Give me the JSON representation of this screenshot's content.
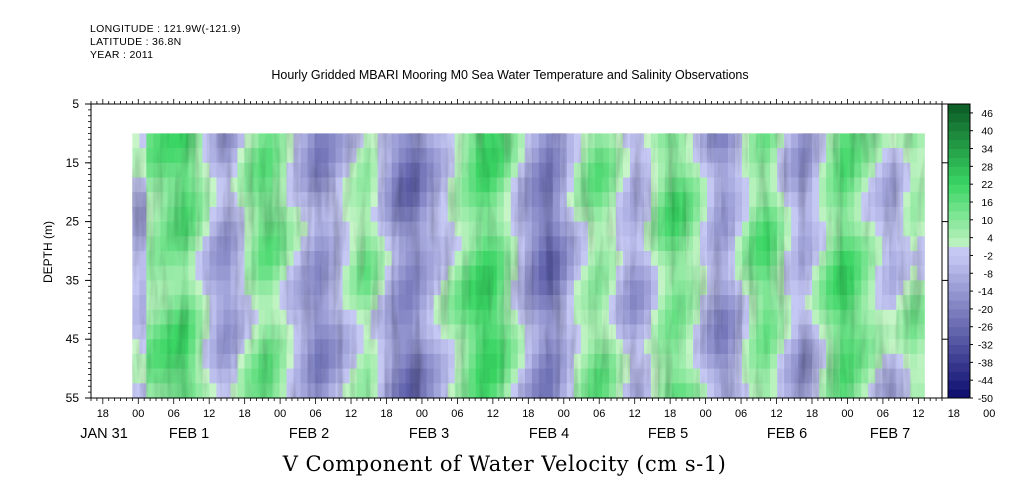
{
  "header": {
    "longitude": "LONGITUDE : 121.9W(-121.9)",
    "latitude": "LATITUDE : 36.8N",
    "year": "YEAR : 2011"
  },
  "chart_data": {
    "type": "heatmap",
    "title": "Hourly Gridded MBARI Mooring M0 Sea Water Temperature and Salinity Observations",
    "xlabel": "V Component of Water Velocity (cm s-1)",
    "ylabel": "DEPTH (m)",
    "ylim": [
      55,
      5
    ],
    "yticks": [
      "5",
      "15",
      "25",
      "35",
      "45",
      "55"
    ],
    "xlim_hours": [
      -8,
      136
    ],
    "data_range_hours": [
      -1,
      133
    ],
    "data_depth_range": [
      10,
      55
    ],
    "xticks_hours": [
      "18",
      "00",
      "06",
      "12",
      "18",
      "00",
      "06",
      "12",
      "18",
      "00",
      "06",
      "12",
      "18",
      "00",
      "06",
      "12",
      "18",
      "00",
      "06",
      "12",
      "18",
      "00",
      "06",
      "12",
      "18",
      "00",
      "06",
      "12",
      "18",
      "00",
      "06",
      "12"
    ],
    "date_labels": [
      "JAN 31",
      "FEB  1",
      "FEB  2",
      "FEB  3",
      "FEB  4",
      "FEB  5",
      "FEB  6",
      "FEB  7"
    ],
    "colorbar_labels": [
      "46",
      "40",
      "34",
      "28",
      "22",
      "16",
      "10",
      "4",
      "-2",
      "-8",
      "-14",
      "-20",
      "-26",
      "-32",
      "-38",
      "-44",
      "-50"
    ],
    "colorbar_levels": [
      -50,
      -47,
      -44,
      -41,
      -38,
      -35,
      -32,
      -29,
      -26,
      -23,
      -20,
      -17,
      -14,
      -11,
      -8,
      -5,
      -2,
      1,
      4,
      7,
      10,
      13,
      16,
      19,
      22,
      25,
      28,
      31,
      34,
      37,
      40,
      43,
      46,
      49
    ],
    "colors": {
      "negative_dark": "#0b0b6e",
      "negative_light": "#c5c8f3",
      "positive_light": "#c8f5c8",
      "positive_dark": "#0b5a24"
    },
    "field_columns": [
      -4,
      -6,
      8,
      10,
      12,
      14,
      15,
      16,
      12,
      6,
      0,
      -6,
      -10,
      -12,
      -8,
      -2,
      4,
      8,
      12,
      13,
      10,
      6,
      0,
      -4,
      -8,
      -12,
      -16,
      -14,
      -10,
      -6,
      -2,
      2,
      6,
      8,
      4,
      -2,
      -8,
      -14,
      -18,
      -20,
      -18,
      -14,
      -10,
      -6,
      -2,
      2,
      6,
      10,
      14,
      18,
      20,
      18,
      14,
      8,
      2,
      -4,
      -10,
      -16,
      -20,
      -22,
      -18,
      -12,
      -6,
      0,
      4,
      8,
      10,
      8,
      4,
      -2,
      -6,
      -10,
      -8,
      -4,
      2,
      8,
      12,
      14,
      12,
      8,
      4,
      -2,
      -8,
      -12,
      -14,
      -10,
      -4,
      2,
      8,
      12,
      14,
      10,
      4,
      -2,
      -6,
      -10,
      -8,
      -2,
      4,
      10,
      14,
      18,
      16,
      12,
      8,
      4,
      0,
      -4,
      -6,
      -2,
      2,
      6,
      4
    ]
  }
}
